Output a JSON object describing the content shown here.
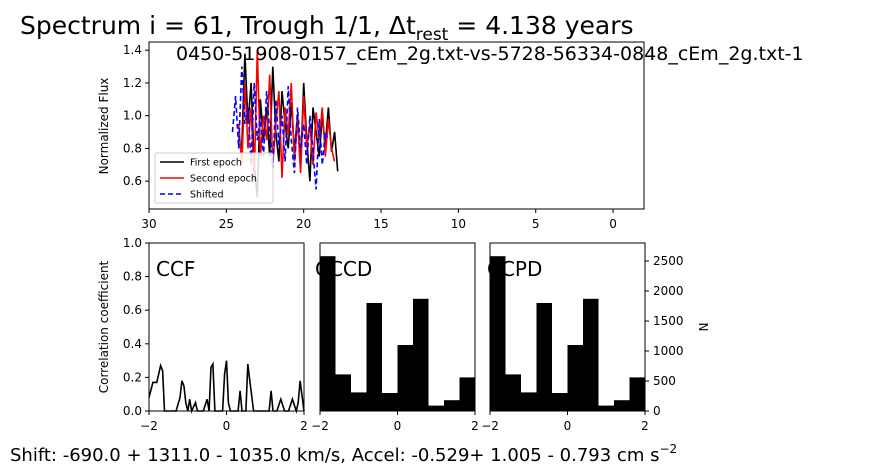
{
  "figure": {
    "title_main": "Spectrum i = 61, Trough 1/1, Δt",
    "title_sub": "rest",
    "title_tail": " = 4.138 years",
    "overlay_id": "0450-51908-0157_cEm_2g.txt-vs-5728-56334-0848_cEm_2g.txt-1",
    "shift_text_a": "Shift: -690.0 + 1311.0 - 1035.0 km/s, Accel: -0.529+ 1.005 - 0.793 cm s",
    "shift_text_sup": "−2"
  },
  "colors": {
    "first": "#000000",
    "second": "#ff0000",
    "shifted": "#0000ff",
    "bars": "#000000"
  },
  "chart_data": [
    {
      "type": "line",
      "panel": "spectrum",
      "ylabel": "Normalized Flux",
      "xlabel": "",
      "xlim": [
        30,
        -2
      ],
      "ylim": [
        0.43,
        1.45
      ],
      "xticks": [
        30,
        25,
        20,
        15,
        10,
        5,
        0
      ],
      "yticks": [
        0.6,
        0.8,
        1.0,
        1.2,
        1.4
      ],
      "legend": "lower-left",
      "series": [
        {
          "name": "First epoch",
          "style": "solid",
          "color": "#000000",
          "x": [
            24.0,
            23.8,
            23.6,
            23.4,
            23.2,
            23.0,
            22.8,
            22.6,
            22.4,
            22.2,
            22.0,
            21.8,
            21.6,
            21.4,
            21.2,
            21.0,
            20.8,
            20.6,
            20.4,
            20.2,
            20.0,
            19.8,
            19.6,
            19.4,
            19.2,
            19.0,
            18.8,
            18.6,
            18.4,
            18.2,
            18.0,
            17.8
          ],
          "y": [
            0.8,
            1.38,
            0.95,
            1.2,
            0.7,
            0.5,
            1.1,
            0.85,
            1.05,
            0.75,
            1.3,
            0.9,
            0.72,
            1.15,
            0.95,
            0.8,
            1.08,
            0.78,
            1.0,
            0.68,
            1.2,
            0.85,
            0.6,
            1.05,
            0.9,
            0.75,
            1.0,
            0.82,
            1.05,
            0.78,
            0.9,
            0.66
          ]
        },
        {
          "name": "Second epoch",
          "style": "solid",
          "color": "#ff0000",
          "x": [
            24.2,
            24.0,
            23.8,
            23.6,
            23.4,
            23.2,
            23.0,
            22.8,
            22.6,
            22.4,
            22.2,
            22.0,
            21.8,
            21.6,
            21.4,
            21.2,
            21.0,
            20.8,
            20.6,
            20.4,
            20.2,
            20.0,
            19.8,
            19.6,
            19.4,
            19.2,
            19.0,
            18.8,
            18.6,
            18.4,
            18.2,
            18.0
          ],
          "y": [
            0.95,
            0.7,
            1.2,
            0.8,
            1.05,
            0.6,
            1.4,
            0.75,
            1.0,
            0.85,
            1.25,
            0.7,
            0.95,
            1.15,
            0.62,
            1.05,
            0.88,
            1.2,
            0.72,
            0.98,
            0.65,
            1.12,
            0.8,
            0.95,
            0.7,
            1.02,
            0.85,
            1.05,
            0.75,
            0.98,
            0.8,
            0.72
          ]
        },
        {
          "name": "Shifted",
          "style": "dashed",
          "color": "#0000ff",
          "x": [
            24.6,
            24.4,
            24.2,
            24.0,
            23.8,
            23.6,
            23.4,
            23.2,
            23.0,
            22.8,
            22.6,
            22.4,
            22.2,
            22.0,
            21.8,
            21.6,
            21.4,
            21.2,
            21.0,
            20.8,
            20.6,
            20.4,
            20.2,
            20.0,
            19.8,
            19.6,
            19.4,
            19.2,
            19.0,
            18.8,
            18.6,
            18.4
          ],
          "y": [
            0.9,
            1.12,
            0.8,
            1.3,
            0.95,
            1.05,
            0.7,
            1.2,
            0.85,
            1.0,
            0.75,
            1.15,
            0.9,
            0.68,
            1.1,
            0.82,
            1.0,
            0.72,
            1.18,
            0.85,
            0.65,
            1.05,
            0.8,
            0.95,
            0.7,
            1.0,
            0.78,
            0.55,
            0.98,
            0.7,
            0.9,
            0.85
          ]
        }
      ]
    },
    {
      "type": "line",
      "panel": "ccf",
      "label": "CCF",
      "ylabel": "Correlation coefficient",
      "xlim": [
        -2,
        2
      ],
      "ylim": [
        0,
        1
      ],
      "xticks": [
        -2,
        0,
        2
      ],
      "yticks": [
        0.0,
        0.2,
        0.4,
        0.6,
        0.8,
        1.0
      ],
      "series": [
        {
          "x": [
            -2.0,
            -1.9,
            -1.8,
            -1.7,
            -1.65,
            -1.6,
            -1.5,
            -1.4,
            -1.3,
            -1.2,
            -1.15,
            -1.1,
            -1.05,
            -1.0,
            -0.95,
            -0.9,
            -0.8,
            -0.75,
            -0.7,
            -0.6,
            -0.5,
            -0.45,
            -0.4,
            -0.35,
            -0.3,
            -0.25,
            -0.2,
            -0.1,
            -0.05,
            0.0,
            0.05,
            0.1,
            0.2,
            0.3,
            0.35,
            0.4,
            0.45,
            0.5,
            0.55,
            0.6,
            0.7,
            0.8,
            0.9,
            1.0,
            1.1,
            1.15,
            1.2,
            1.3,
            1.4,
            1.5,
            1.6,
            1.7,
            1.8,
            1.85,
            1.9,
            2.0
          ],
          "y": [
            0.08,
            0.17,
            0.17,
            0.27,
            0.24,
            0.0,
            0.0,
            0.0,
            0.0,
            0.08,
            0.18,
            0.15,
            0.05,
            0.0,
            0.07,
            0.0,
            0.05,
            0.0,
            0.0,
            0.0,
            0.07,
            0.0,
            0.26,
            0.28,
            0.0,
            0.0,
            0.0,
            0.0,
            0.22,
            0.3,
            0.05,
            0.0,
            0.0,
            0.0,
            0.12,
            0.0,
            0.0,
            0.0,
            0.28,
            0.18,
            0.0,
            0.0,
            0.0,
            0.0,
            0.0,
            0.12,
            0.0,
            0.0,
            0.07,
            0.0,
            0.0,
            0.07,
            0.0,
            0.05,
            0.18,
            0.0
          ]
        }
      ]
    },
    {
      "type": "bar",
      "panel": "cccd",
      "label": "CCCD",
      "xlim": [
        -2,
        2
      ],
      "ymax": 2800,
      "xticks": [
        -2,
        0,
        2
      ],
      "bin_edges": [
        -2.0,
        -1.6,
        -1.2,
        -0.8,
        -0.4,
        0.0,
        0.4,
        0.8,
        1.2,
        1.6,
        2.0
      ],
      "values": [
        2580,
        610,
        310,
        1800,
        300,
        1100,
        1870,
        90,
        180,
        560
      ]
    },
    {
      "type": "bar",
      "panel": "ccpd",
      "label": "CCPD",
      "xlim": [
        -2,
        2
      ],
      "ymax": 2800,
      "ylabel": "N",
      "xticks": [
        -2,
        0,
        2
      ],
      "yticks": [
        0,
        500,
        1000,
        1500,
        2000,
        2500
      ],
      "bin_edges": [
        -2.0,
        -1.6,
        -1.2,
        -0.8,
        -0.4,
        0.0,
        0.4,
        0.8,
        1.2,
        1.6,
        2.0
      ],
      "values": [
        2580,
        610,
        310,
        1800,
        300,
        1100,
        1870,
        90,
        180,
        560
      ]
    }
  ]
}
